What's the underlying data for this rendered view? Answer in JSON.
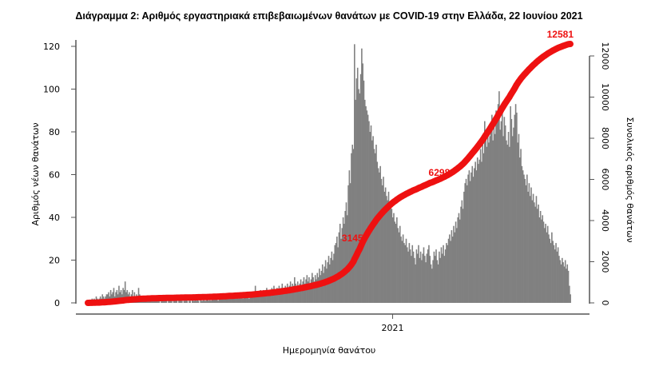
{
  "chart_data": {
    "type": "bar",
    "title": "Διάγραμμα 2: Αριθμός εργαστηριακά επιβεβαιωμένων θανάτων με COVID-19 στην Ελλάδα, 22 Ιουνίου 2021",
    "xlabel": "Ημερομηνία θανάτου",
    "ylabel": "Αριθμός νέων θανάτων",
    "y2label": "Συνολικός αριθμός θανάτων",
    "x_ticks": [
      "2021"
    ],
    "ylim": [
      0,
      120
    ],
    "y_ticks": [
      0,
      20,
      40,
      60,
      80,
      100,
      120
    ],
    "y2lim": [
      0,
      12000
    ],
    "y2_ticks": [
      0,
      2000,
      4000,
      6000,
      8000,
      10000,
      12000
    ],
    "grid": false,
    "colors": {
      "bars": "#808080",
      "cumulative": "#ee1111"
    },
    "series": [
      {
        "type": "bar",
        "axis": "left",
        "values": [
          1,
          0,
          1,
          1,
          2,
          1,
          2,
          1,
          3,
          2,
          1,
          2,
          3,
          2,
          4,
          3,
          2,
          3,
          4,
          4,
          5,
          3,
          6,
          4,
          5,
          7,
          3,
          5,
          6,
          4,
          8,
          5,
          6,
          4,
          7,
          6,
          10,
          5,
          6,
          4,
          5,
          3,
          4,
          6,
          3,
          5,
          2,
          4,
          3,
          7,
          4,
          3,
          2,
          3,
          2,
          3,
          1,
          2,
          3,
          2,
          1,
          2,
          3,
          1,
          2,
          1,
          2,
          3,
          1,
          2,
          0,
          1,
          2,
          1,
          1,
          2,
          1,
          0,
          1,
          2,
          1,
          1,
          0,
          2,
          1,
          1,
          2,
          0,
          1,
          1,
          3,
          1,
          0,
          1,
          1,
          2,
          1,
          0,
          1,
          1,
          0,
          2,
          1,
          1,
          2,
          1,
          3,
          1,
          0,
          2,
          1,
          1,
          2,
          1,
          1,
          2,
          3,
          1,
          2,
          1,
          2,
          2,
          3,
          2,
          3,
          2,
          1,
          3,
          2,
          4,
          2,
          3,
          2,
          3,
          2,
          3,
          4,
          3,
          2,
          3,
          2,
          4,
          3,
          2,
          3,
          4,
          2,
          3,
          4,
          3,
          2,
          4,
          3,
          5,
          3,
          4,
          2,
          5,
          3,
          4,
          5,
          3,
          8,
          4,
          3,
          5,
          4,
          6,
          5,
          4,
          6,
          5,
          4,
          7,
          5,
          6,
          4,
          6,
          7,
          5,
          8,
          6,
          5,
          7,
          6,
          8,
          5,
          7,
          9,
          6,
          7,
          8,
          6,
          9,
          7,
          8,
          10,
          7,
          9,
          8,
          12,
          9,
          8,
          10,
          7,
          9,
          11,
          8,
          10,
          12,
          9,
          11,
          13,
          10,
          12,
          9,
          11,
          14,
          12,
          10,
          13,
          11,
          14,
          12,
          16,
          13,
          15,
          18,
          14,
          17,
          20,
          16,
          19,
          22,
          18,
          21,
          24,
          20,
          23,
          27,
          28,
          31,
          26,
          33,
          37,
          30,
          35,
          40,
          37,
          43,
          47,
          41,
          55,
          62,
          56,
          70,
          74,
          72,
          121,
          95,
          105,
          110,
          100,
          98,
          107,
          119,
          112,
          104,
          95,
          92,
          90,
          88,
          85,
          80,
          83,
          76,
          78,
          72,
          70,
          74,
          66,
          63,
          61,
          64,
          58,
          55,
          59,
          52,
          54,
          50,
          48,
          52,
          45,
          47,
          44,
          40,
          42,
          38,
          37,
          40,
          35,
          33,
          36,
          31,
          29,
          32,
          28,
          27,
          30,
          26,
          24,
          28,
          25,
          22,
          27,
          24,
          21,
          18,
          25,
          23,
          27,
          21,
          24,
          20,
          23,
          26,
          22,
          19,
          23,
          25,
          27,
          22,
          18,
          16,
          20,
          24,
          22,
          25,
          20,
          18,
          24,
          21,
          26,
          23,
          27,
          22,
          25,
          28,
          27,
          30,
          32,
          29,
          34,
          31,
          36,
          33,
          38,
          35,
          40,
          42,
          39,
          45,
          48,
          44,
          52,
          56,
          58,
          55,
          60,
          62,
          57,
          61,
          64,
          59,
          63,
          66,
          62,
          68,
          65,
          67,
          72,
          66,
          74,
          70,
          85,
          77,
          73,
          80,
          75,
          78,
          82,
          88,
          76,
          84,
          79,
          90,
          86,
          93,
          99,
          81,
          85,
          91,
          78,
          87,
          83,
          76,
          74,
          80,
          73,
          92,
          86,
          78,
          82,
          88,
          93,
          89,
          75,
          79,
          68,
          72,
          64,
          62,
          60,
          58,
          55,
          60,
          52,
          56,
          50,
          54,
          48,
          51,
          47,
          45,
          50,
          44,
          46,
          40,
          43,
          39,
          41,
          38,
          35,
          37,
          33,
          36,
          32,
          30,
          28,
          33,
          29,
          27,
          25,
          28,
          24,
          26,
          22,
          20,
          18,
          21,
          19,
          17,
          20,
          16,
          18,
          15,
          8,
          4
        ]
      },
      {
        "type": "line",
        "axis": "right",
        "cumulative": true,
        "final_total": 12581
      }
    ],
    "annotations": [
      "3145",
      "6298",
      "12581"
    ]
  }
}
